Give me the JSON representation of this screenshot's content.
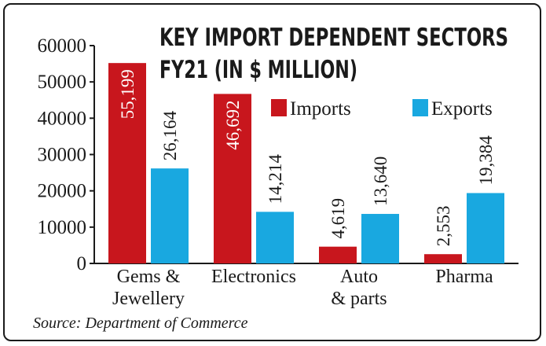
{
  "chart_data": {
    "type": "bar",
    "title_lines": [
      "KEY IMPORT DEPENDENT SECTORS",
      "FY21 (IN $ MILLION)"
    ],
    "categories": [
      [
        "Gems &",
        "Jewellery"
      ],
      [
        "Electronics"
      ],
      [
        "Auto",
        "& parts"
      ],
      [
        "Pharma"
      ]
    ],
    "series": [
      {
        "name": "Imports",
        "color": "#c8161d",
        "values": [
          55199,
          46692,
          4619,
          2553
        ],
        "labels": [
          "55,199",
          "46,692",
          "4,619",
          "2,553"
        ]
      },
      {
        "name": "Exports",
        "color": "#19a8e0",
        "values": [
          26164,
          14214,
          13640,
          19384
        ],
        "labels": [
          "26,164",
          "14,214",
          "13,640",
          "19,384"
        ]
      }
    ],
    "yticks": [
      "0",
      "10000",
      "20000",
      "30000",
      "40000",
      "50000",
      "60000"
    ],
    "ylim": [
      0,
      60000
    ],
    "grid": false,
    "legend_position": "top-right",
    "source": "Source: Department of Commerce"
  }
}
